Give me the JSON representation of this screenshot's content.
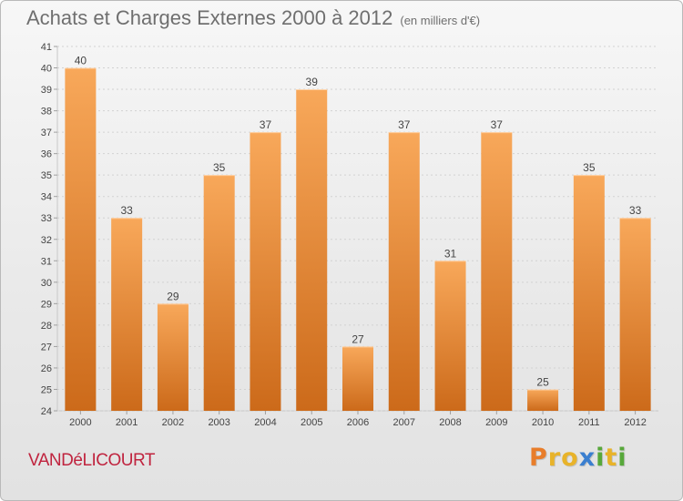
{
  "header": {
    "title": "Achats et Charges Externes 2000 à 2012",
    "subtitle": "(en milliers d'€)"
  },
  "commune": "VANDéLICOURT",
  "logo": {
    "letters": [
      "P",
      "r",
      "o",
      "x",
      "i",
      "t",
      "i"
    ],
    "colors": [
      "#e87d2a",
      "#e8b32a",
      "#e8b32a",
      "#3a7fd0",
      "#57a83a",
      "#e8b32a",
      "#57a83a"
    ]
  },
  "colors": {
    "bar_light": "#f8a85a",
    "bar_dark": "#cc6a1a",
    "commune": "#c0243f",
    "text": "#444444"
  },
  "chart_data": {
    "type": "bar",
    "title": "Achats et Charges Externes 2000 à 2012",
    "subtitle": "(en milliers d'€)",
    "categories": [
      "2000",
      "2001",
      "2002",
      "2003",
      "2004",
      "2005",
      "2006",
      "2007",
      "2008",
      "2009",
      "2010",
      "2011",
      "2012"
    ],
    "values": [
      40,
      33,
      29,
      35,
      37,
      39,
      27,
      37,
      31,
      37,
      25,
      35,
      33
    ],
    "ylim": [
      24,
      41
    ],
    "yticks": [
      "24",
      "25",
      "26",
      "27",
      "28",
      "29",
      "30",
      "31",
      "32",
      "33",
      "34",
      "35",
      "36",
      "37",
      "38",
      "39",
      "40",
      "41"
    ],
    "grid": true,
    "xlabel": "",
    "ylabel": ""
  }
}
